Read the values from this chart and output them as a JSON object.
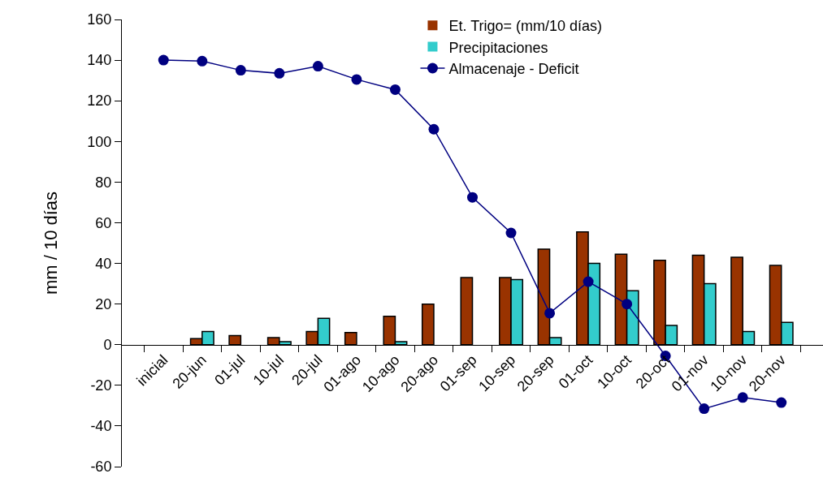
{
  "chart_data": {
    "type": "bar",
    "ylabel": "mm / 10 días",
    "categories": [
      "inicial",
      "20-jun",
      "01-jul",
      "10-jul",
      "20-jul",
      "01-ago",
      "10-ago",
      "20-ago",
      "01-sep",
      "10-sep",
      "20-sep",
      "01-oct",
      "10-oct",
      "20-oct",
      "01-nov",
      "10-nov",
      "20-nov"
    ],
    "series": [
      {
        "name": "Et. Trigo= (mm/10 días)",
        "color": "#993300",
        "values": [
          null,
          3,
          4.5,
          3.5,
          6.5,
          6,
          14,
          20,
          33,
          33,
          47,
          55.5,
          44.5,
          41.5,
          44,
          43,
          39
        ]
      },
      {
        "name": "Precipitaciones",
        "color": "#33cccc",
        "values": [
          null,
          6.5,
          0,
          1.5,
          13,
          0,
          1.5,
          0,
          0,
          32,
          3.5,
          40,
          26.5,
          9.5,
          30,
          6.5,
          11
        ]
      },
      {
        "name": "Almacenaje - Deficit",
        "type": "line",
        "color": "#000080",
        "marker": "circle",
        "values": [
          140,
          139.5,
          135,
          133.5,
          137,
          130.5,
          125.5,
          106,
          72.5,
          55,
          15.5,
          31,
          20,
          -5.5,
          -31.5,
          -26,
          -28.5
        ]
      }
    ],
    "ylim": [
      -60,
      160
    ],
    "yticks": [
      -60,
      -40,
      -20,
      0,
      20,
      40,
      60,
      80,
      100,
      120,
      140,
      160
    ],
    "grid": false,
    "legend": "top right"
  }
}
